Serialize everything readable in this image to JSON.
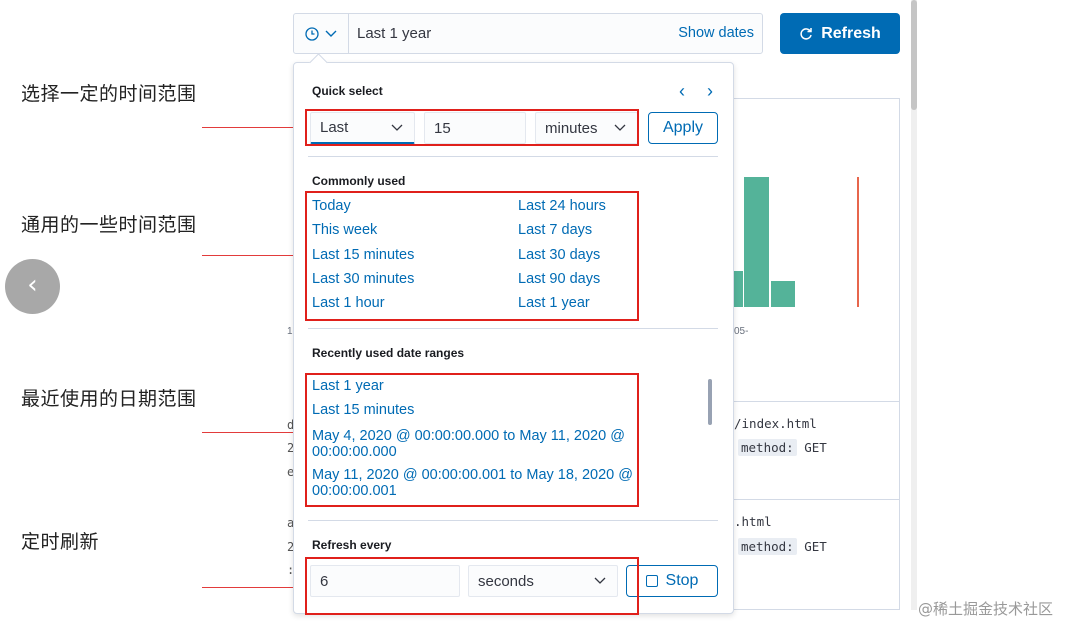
{
  "annotations": {
    "quick_select": "选择一定的时间范围",
    "commonly_used": "通用的一些时间范围",
    "recently_used": "最近使用的日期范围",
    "refresh": "定时刷新"
  },
  "topbar": {
    "range_text": "Last 1 year",
    "show_dates": "Show dates",
    "refresh_label": "Refresh"
  },
  "popover": {
    "quick_select": {
      "title": "Quick select",
      "tense": "Last",
      "value": "15",
      "unit": "minutes",
      "apply_label": "Apply"
    },
    "commonly_used": {
      "title": "Commonly used",
      "items": [
        "Today",
        "Last 24 hours",
        "This week",
        "Last 7 days",
        "Last 15 minutes",
        "Last 30 days",
        "Last 30 minutes",
        "Last 90 days",
        "Last 1 hour",
        "Last 1 year"
      ]
    },
    "recently_used": {
      "title": "Recently used date ranges",
      "items": [
        "Last 1 year",
        "Last 15 minutes",
        "May 4, 2020 @ 00:00:00.000 to May 11, 2020 @ 00:00:00.000",
        "May 11, 2020 @ 00:00:00.001 to May 18, 2020 @ 00:00:00.001"
      ]
    },
    "refresh": {
      "title": "Refresh every",
      "value": "6",
      "unit": "seconds",
      "stop_label": "Stop"
    }
  },
  "background": {
    "axis_label": "05-",
    "axis_label_left": "1-",
    "row1_path": "/index.html",
    "row2_path": ".html",
    "method_key": "method:",
    "method_value": "GET",
    "edge_chars": [
      "d",
      "2",
      "e",
      "a",
      "2",
      ":"
    ]
  },
  "watermark": "@稀土掘金技术社区",
  "colors": {
    "accent": "#006bb4",
    "bar": "#54b399",
    "annotation_box": "#e0201b"
  }
}
